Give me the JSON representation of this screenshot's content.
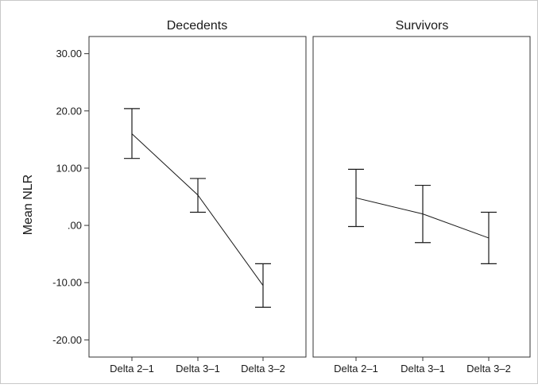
{
  "chart_data": {
    "type": "line",
    "ylabel": "Mean NLR",
    "ylim": [
      -23,
      33
    ],
    "y_ticks": [
      "30.00",
      "20.00",
      "10.00",
      ".00",
      "-10.00",
      "-20.00"
    ],
    "y_tick_values": [
      30,
      20,
      10,
      0,
      -10,
      -20
    ],
    "categories": [
      "Delta 2–1",
      "Delta 3–1",
      "Delta 3–2"
    ],
    "error_bars": true,
    "grid": false,
    "panels": [
      {
        "title": "Decedents",
        "mean": [
          16.0,
          5.3,
          -10.5
        ],
        "lower": [
          11.7,
          2.3,
          -14.3
        ],
        "upper": [
          20.4,
          8.2,
          -6.7
        ]
      },
      {
        "title": "Survivors",
        "mean": [
          4.8,
          2.0,
          -2.2
        ],
        "lower": [
          -0.2,
          -3.0,
          -6.7
        ],
        "upper": [
          9.8,
          7.0,
          2.3
        ]
      }
    ]
  }
}
